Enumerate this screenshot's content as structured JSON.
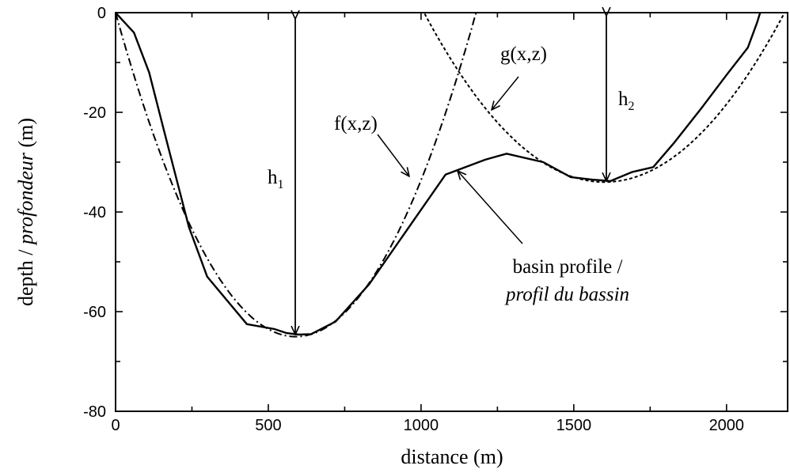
{
  "chart_data": {
    "type": "line",
    "xlabel": "distance (m)",
    "ylabel_part1": "depth / ",
    "ylabel_part2": "profondeur",
    "ylabel_part3": " (m)",
    "xlim": [
      0,
      2200
    ],
    "ylim": [
      -80,
      0
    ],
    "xticks": [
      0,
      500,
      1000,
      1500,
      2000
    ],
    "xtick_labels": [
      "0",
      "500",
      "1000",
      "1500",
      "2000"
    ],
    "yticks": [
      0,
      -20,
      -40,
      -60,
      -80
    ],
    "ytick_labels": [
      "0",
      "-20",
      "-40",
      "-60",
      "-80"
    ],
    "grid": false,
    "legend": "none",
    "series": [
      {
        "style": "solid",
        "x": [
          0,
          60,
          110,
          160,
          240,
          300,
          430,
          520,
          560,
          600,
          640,
          720,
          830,
          1080,
          1210,
          1280,
          1400,
          1490,
          1560,
          1620,
          1690,
          1760,
          1830,
          1920,
          2000,
          2070,
          2100,
          2110
        ],
        "y": [
          0,
          -4,
          -12,
          -24,
          -43,
          -53,
          -62.5,
          -63.5,
          -64.3,
          -64.6,
          -64.5,
          -62,
          -54.5,
          -32.5,
          -29.5,
          -28.3,
          -30,
          -33,
          -33.5,
          -33.8,
          -32,
          -31,
          -26,
          -19,
          -12.5,
          -7,
          -2,
          0
        ]
      },
      {
        "style": "dashdot",
        "function": "f(x,z)",
        "vertex_x": 600,
        "vertex_y": -65,
        "roots": [
          0,
          1180
        ]
      },
      {
        "style": "dotted",
        "function": "g(x,z)",
        "vertex_x": 1600,
        "vertex_y": -34,
        "roots": [
          1010,
          2190
        ]
      }
    ],
    "annotations": {
      "f_label": "f(x,z)",
      "g_label": "g(x,z)",
      "h1_main": "h",
      "h1_sub": "1",
      "h2_main": "h",
      "h2_sub": "2",
      "profile_line1": "basin profile /",
      "profile_line2": "profil du bassin"
    }
  }
}
